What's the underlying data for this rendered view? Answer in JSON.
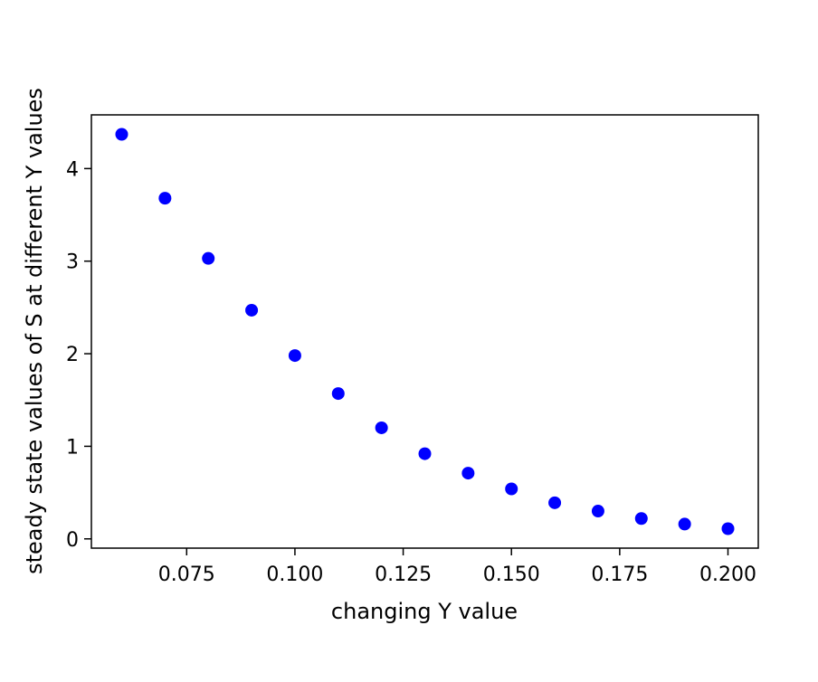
{
  "chart_data": {
    "type": "scatter",
    "title": "",
    "xlabel": "changing Y value",
    "ylabel": "steady state values of S at different Y values",
    "xlim": [
      0.053,
      0.207
    ],
    "ylim": [
      -0.1,
      4.58
    ],
    "xticks": [
      0.075,
      0.1,
      0.125,
      0.15,
      0.175,
      0.2
    ],
    "xtick_labels": [
      "0.075",
      "0.100",
      "0.125",
      "0.150",
      "0.175",
      "0.200"
    ],
    "yticks": [
      0,
      1,
      2,
      3,
      4
    ],
    "ytick_labels": [
      "0",
      "1",
      "2",
      "3",
      "4"
    ],
    "grid": false,
    "marker_color": "#0000ff",
    "series": [
      {
        "x": [
          0.06,
          0.07,
          0.08,
          0.09,
          0.1,
          0.11,
          0.12,
          0.13,
          0.14,
          0.15,
          0.16,
          0.17,
          0.18,
          0.19,
          0.2
        ],
        "y": [
          4.37,
          3.68,
          3.03,
          2.47,
          1.98,
          1.57,
          1.2,
          0.92,
          0.71,
          0.54,
          0.39,
          0.3,
          0.22,
          0.16,
          0.11
        ]
      }
    ]
  }
}
